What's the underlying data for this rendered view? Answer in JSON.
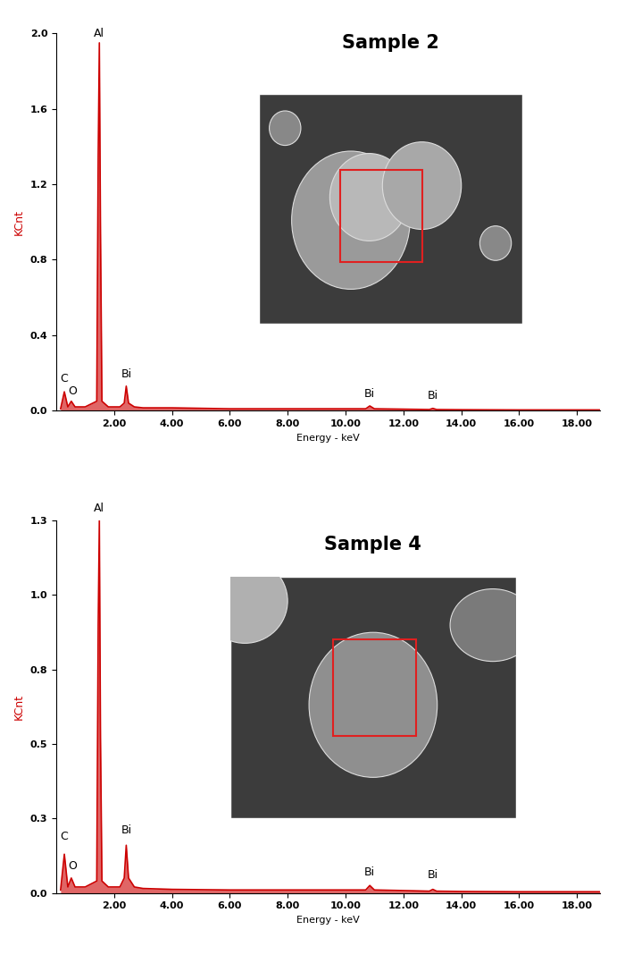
{
  "chart_data": [
    {
      "type": "line",
      "title": "Sample 2",
      "xlabel": "Energy - keV",
      "ylabel": "KCnt",
      "color": "#cc0000",
      "x": [
        0.15,
        0.28,
        0.4,
        0.52,
        0.65,
        1.0,
        1.4,
        1.45,
        1.49,
        1.53,
        1.58,
        1.8,
        2.2,
        2.35,
        2.42,
        2.5,
        2.7,
        3.0,
        4.0,
        6.0,
        8.0,
        10.0,
        10.7,
        10.84,
        11.0,
        12.0,
        12.9,
        13.02,
        13.15,
        14.0,
        16.0,
        18.0,
        18.8
      ],
      "values": [
        0.01,
        0.1,
        0.02,
        0.05,
        0.02,
        0.02,
        0.05,
        1.35,
        1.95,
        0.95,
        0.05,
        0.02,
        0.02,
        0.04,
        0.13,
        0.04,
        0.02,
        0.015,
        0.015,
        0.01,
        0.01,
        0.01,
        0.01,
        0.025,
        0.01,
        0.008,
        0.006,
        0.012,
        0.006,
        0.005,
        0.004,
        0.004,
        0.004
      ],
      "xlim": [
        0,
        18.8
      ],
      "xticks": [
        {
          "value": 2,
          "label": "2.00"
        },
        {
          "value": 4,
          "label": "4.00"
        },
        {
          "value": 6,
          "label": "6.00"
        },
        {
          "value": 8,
          "label": "8.00"
        },
        {
          "value": 10,
          "label": "10.00"
        },
        {
          "value": 12,
          "label": "12.00"
        },
        {
          "value": 14,
          "label": "14.00"
        },
        {
          "value": 16,
          "label": "16.00"
        },
        {
          "value": 18,
          "label": "18.00"
        }
      ],
      "ylim": [
        0,
        2.0
      ],
      "yticks": [
        0.0,
        0.4,
        0.8,
        1.2,
        1.6,
        2.0
      ],
      "annotations": [
        {
          "text": "Al",
          "x": 1.49,
          "y": 1.97
        },
        {
          "text": "C",
          "x": 0.28,
          "y": 0.14
        },
        {
          "text": "O",
          "x": 0.55,
          "y": 0.07
        },
        {
          "text": "Bi",
          "x": 2.42,
          "y": 0.16
        },
        {
          "text": "Bi",
          "x": 10.84,
          "y": 0.06
        },
        {
          "text": "Bi",
          "x": 13.02,
          "y": 0.05
        }
      ]
    },
    {
      "type": "line",
      "title": "Sample 4",
      "xlabel": "Energy - keV",
      "ylabel": "KCnt",
      "color": "#cc0000",
      "x": [
        0.15,
        0.28,
        0.4,
        0.52,
        0.65,
        1.0,
        1.4,
        1.45,
        1.49,
        1.53,
        1.58,
        1.8,
        2.2,
        2.35,
        2.42,
        2.5,
        2.7,
        3.0,
        4.0,
        6.0,
        8.0,
        10.0,
        10.7,
        10.84,
        11.0,
        12.0,
        12.9,
        13.02,
        13.15,
        14.0,
        16.0,
        18.0,
        18.8
      ],
      "values": [
        0.01,
        0.13,
        0.02,
        0.05,
        0.02,
        0.02,
        0.04,
        0.9,
        1.25,
        0.52,
        0.04,
        0.02,
        0.02,
        0.05,
        0.16,
        0.05,
        0.02,
        0.015,
        0.012,
        0.01,
        0.01,
        0.01,
        0.01,
        0.025,
        0.01,
        0.008,
        0.006,
        0.012,
        0.006,
        0.005,
        0.004,
        0.004,
        0.004
      ],
      "xlim": [
        0,
        18.8
      ],
      "xticks": [
        {
          "value": 2,
          "label": "2.00"
        },
        {
          "value": 4,
          "label": "4.00"
        },
        {
          "value": 6,
          "label": "6.00"
        },
        {
          "value": 8,
          "label": "8.00"
        },
        {
          "value": 10,
          "label": "10.00"
        },
        {
          "value": 12,
          "label": "12.00"
        },
        {
          "value": 14,
          "label": "14.00"
        },
        {
          "value": 16,
          "label": "16.00"
        },
        {
          "value": 18,
          "label": "18.00"
        }
      ],
      "ylim": [
        0,
        1.25
      ],
      "yticks": [
        0.0,
        {
          "value": 0.25,
          "label": "0.3"
        },
        0.5,
        {
          "value": 0.75,
          "label": "0.8"
        },
        1.0,
        {
          "value": 1.25,
          "label": "1.3"
        }
      ],
      "annotations": [
        {
          "text": "Al",
          "x": 1.49,
          "y": 1.27
        },
        {
          "text": "C",
          "x": 0.28,
          "y": 0.17
        },
        {
          "text": "O",
          "x": 0.55,
          "y": 0.07
        },
        {
          "text": "Bi",
          "x": 2.42,
          "y": 0.19
        },
        {
          "text": "Bi",
          "x": 10.84,
          "y": 0.05
        },
        {
          "text": "Bi",
          "x": 13.02,
          "y": 0.04
        }
      ]
    }
  ]
}
